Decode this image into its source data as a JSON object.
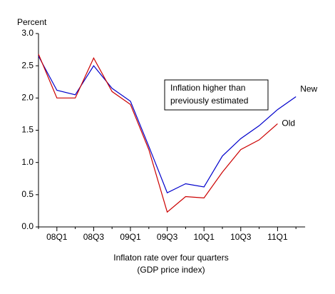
{
  "chart_data": {
    "type": "line",
    "y_label": "Percent",
    "x_label": [
      "Inflaton rate over four quarters",
      "(GDP price index)"
    ],
    "annotation": [
      "Inflation higher than",
      "previously estimated"
    ],
    "categories": [
      null,
      "08Q1",
      null,
      "08Q3",
      null,
      "09Q1",
      null,
      "09Q3",
      null,
      "10Q1",
      null,
      "10Q3",
      null,
      "11Q1",
      null
    ],
    "series": [
      {
        "name": "New",
        "color": "#0000cc",
        "values": [
          2.65,
          2.12,
          2.05,
          2.5,
          2.15,
          1.95,
          1.25,
          0.53,
          0.67,
          0.62,
          1.1,
          1.37,
          1.57,
          1.82,
          2.02
        ]
      },
      {
        "name": "Old",
        "color": "#cc0000",
        "values": [
          2.68,
          2.0,
          2.0,
          2.62,
          2.1,
          1.9,
          1.2,
          0.23,
          0.47,
          0.45,
          0.85,
          1.2,
          1.35,
          1.6,
          null
        ]
      }
    ],
    "ylim": [
      0,
      3
    ],
    "yticks": [
      {
        "value": 0,
        "label": "0.0"
      },
      {
        "value": 0.5,
        "label": "0.5"
      },
      {
        "value": 1,
        "label": "1.0"
      },
      {
        "value": 1.5,
        "label": "1.5"
      },
      {
        "value": 2,
        "label": "2.0"
      },
      {
        "value": 2.5,
        "label": "2.5"
      },
      {
        "value": 3,
        "label": "3.0"
      }
    ]
  }
}
